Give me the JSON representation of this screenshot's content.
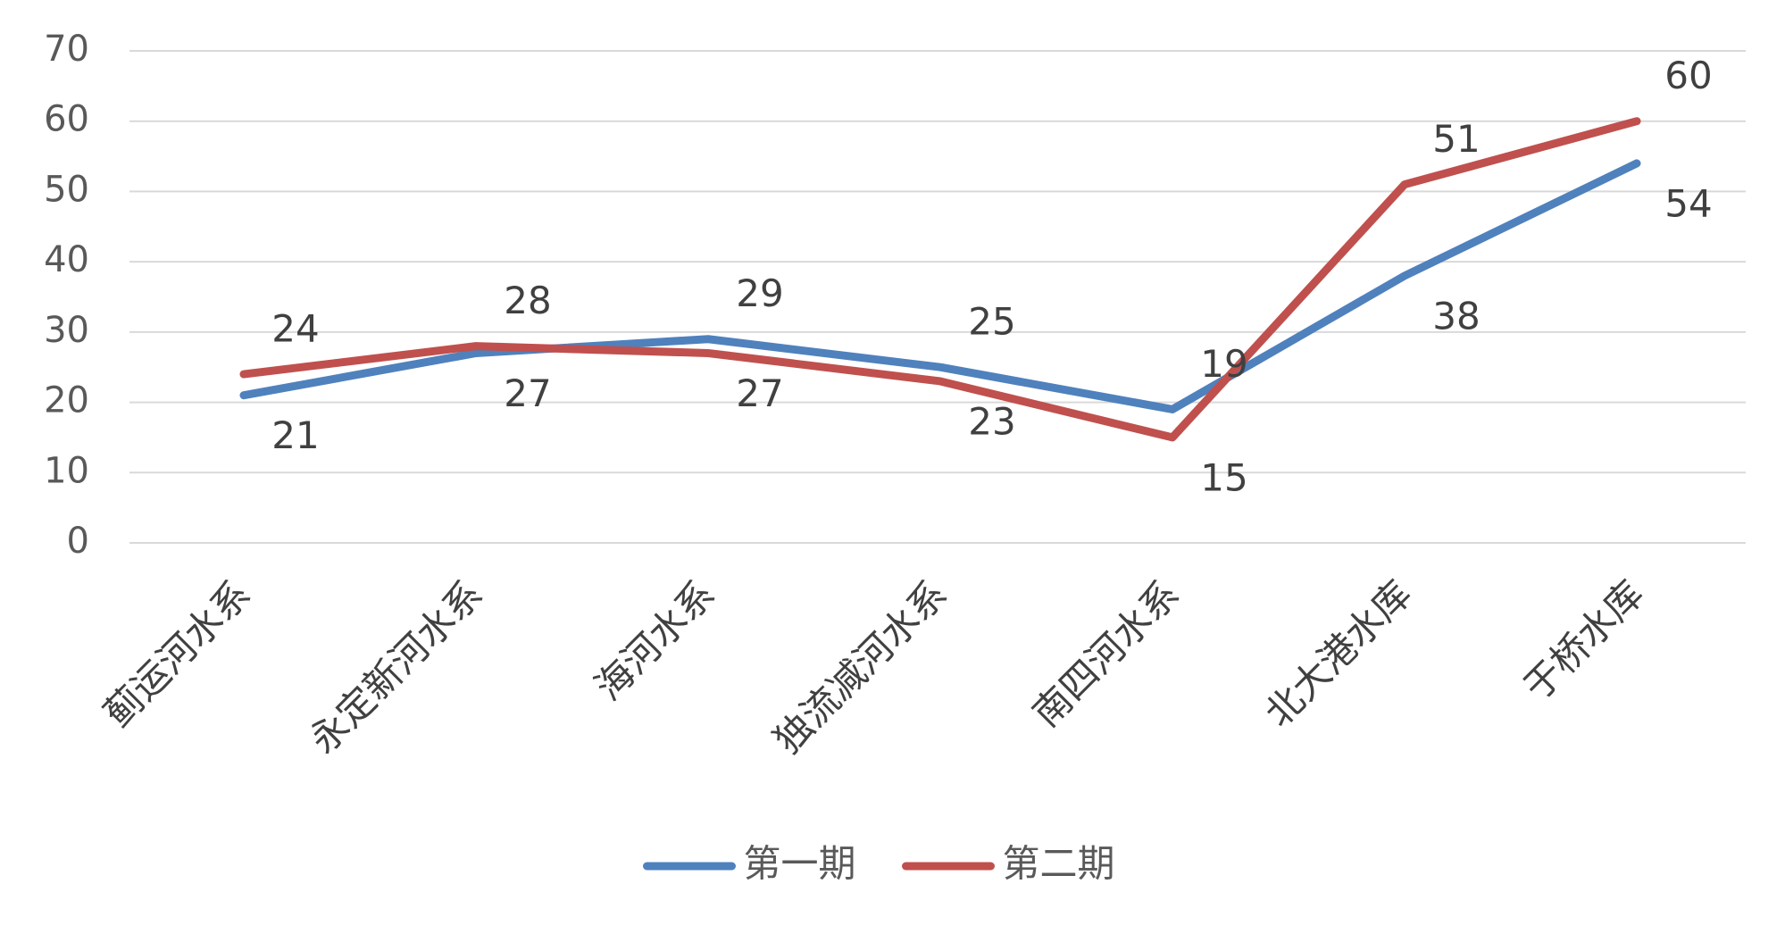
{
  "chart_data": {
    "type": "line",
    "categories": [
      "蓟运河水系",
      "永定新河水系",
      "海河水系",
      "独流减河水系",
      "南四河水系",
      "北大港水库",
      "于桥水库"
    ],
    "ylim": [
      0,
      70
    ],
    "yticks": [
      0,
      10,
      20,
      30,
      40,
      50,
      60,
      70
    ],
    "grid": true,
    "legend_position": "bottom",
    "series": [
      {
        "name": "第一期",
        "color": "#4f81bd",
        "values": [
          21,
          27,
          29,
          25,
          19,
          38,
          54
        ]
      },
      {
        "name": "第二期",
        "color": "#c0504d",
        "values": [
          24,
          28,
          27,
          23,
          15,
          51,
          60
        ]
      }
    ]
  }
}
